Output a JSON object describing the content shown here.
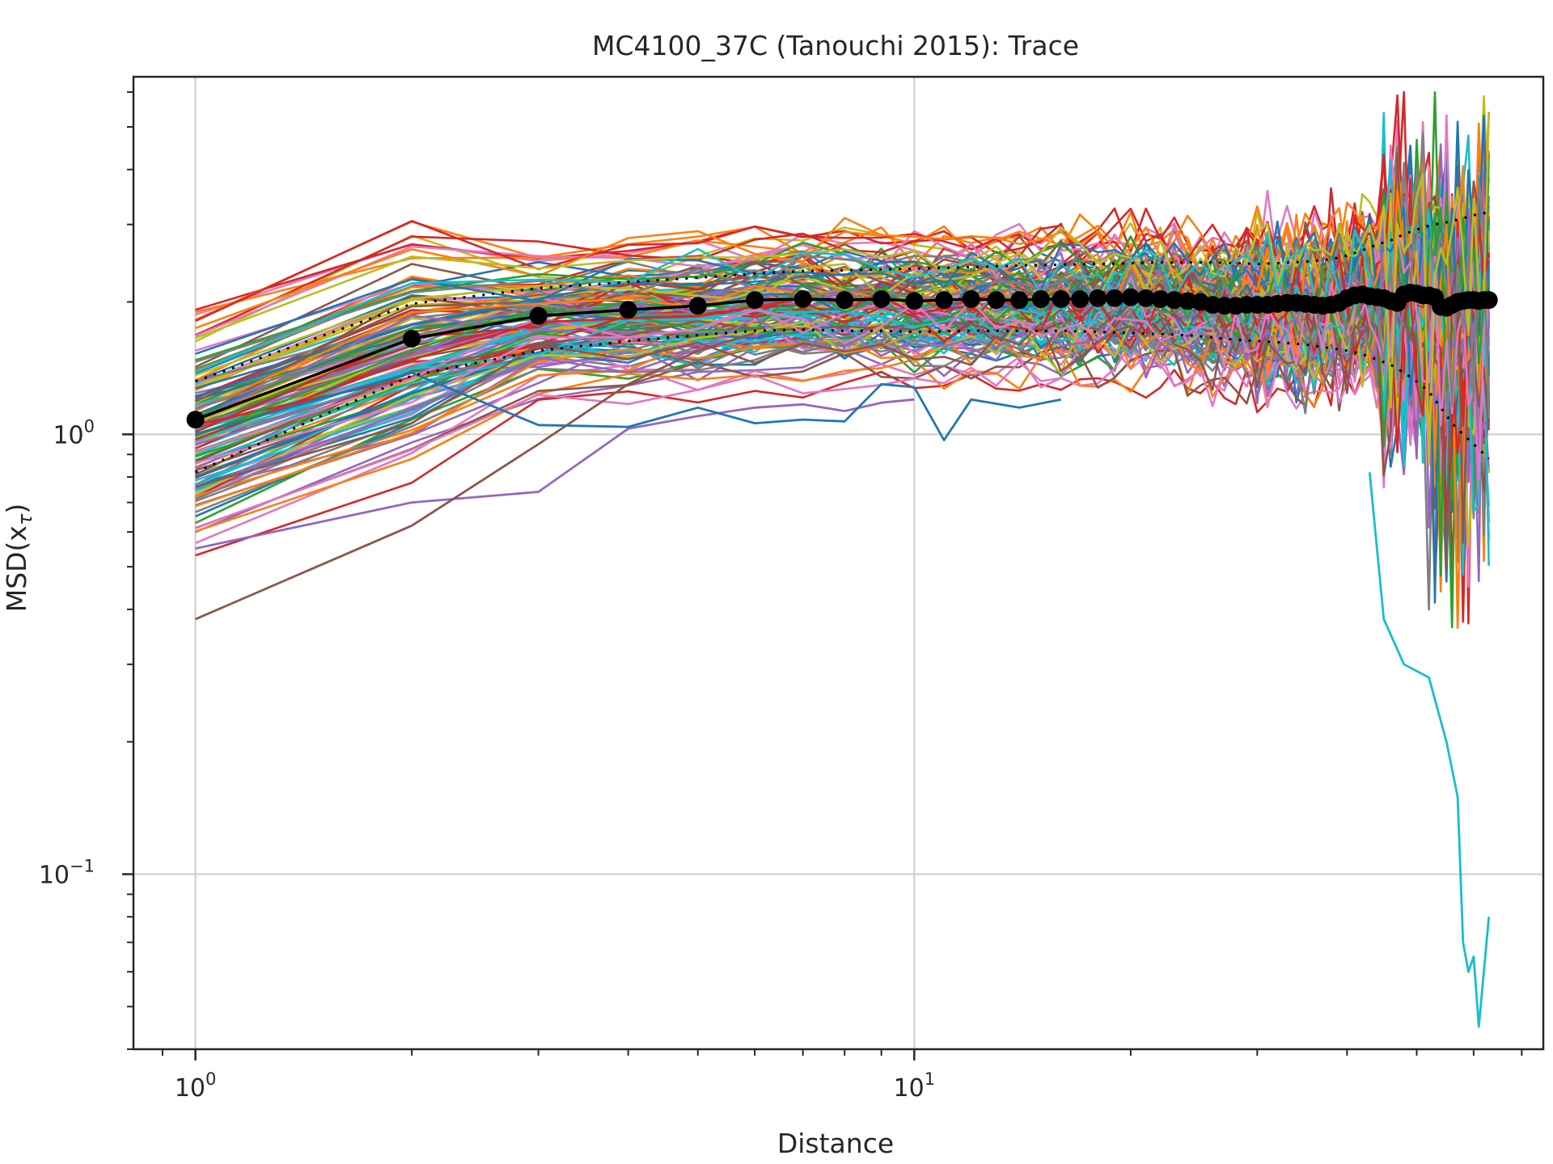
{
  "chart_data": {
    "type": "line",
    "title": "MC4100_37C (Tanouchi 2015): Trace",
    "xlabel": "Distance",
    "ylabel": "MSD(x_τ)",
    "ylabel_base": "MSD(x",
    "ylabel_sub": "τ",
    "ylabel_close": ")",
    "x_scale": "log",
    "y_scale": "log",
    "xlim": [
      0.82,
      75
    ],
    "ylim": [
      0.04,
      6.5
    ],
    "x_ticks": [
      {
        "value": 1,
        "base": "10",
        "exp": "0"
      },
      {
        "value": 10,
        "base": "10",
        "exp": "1"
      }
    ],
    "y_ticks": [
      {
        "value": 0.1,
        "base": "10",
        "exp": "−1"
      },
      {
        "value": 1,
        "base": "10",
        "exp": "0"
      }
    ],
    "grid": true,
    "legend": "none",
    "trace_count": 140,
    "palette": [
      "#1f77b4",
      "#ff7f0e",
      "#2ca02c",
      "#d62728",
      "#9467bd",
      "#8c564b",
      "#e377c2",
      "#7f7f7f",
      "#bcbd22",
      "#17becf"
    ],
    "mean_color": "#000000",
    "highlighted_traces": [
      {
        "name": "",
        "color": "#17becf",
        "x": [
          43,
          45,
          48,
          52,
          55,
          57,
          58,
          59,
          60,
          61,
          62,
          63
        ],
        "y": [
          0.82,
          0.38,
          0.3,
          0.28,
          0.2,
          0.15,
          0.07,
          0.06,
          0.065,
          0.045,
          0.06,
          0.08
        ]
      },
      {
        "name": "",
        "color": "#9467bd",
        "x": [
          1,
          2,
          3,
          4,
          5,
          6,
          7,
          8,
          9,
          10
        ],
        "y": [
          0.55,
          0.7,
          0.74,
          1.03,
          1.1,
          1.15,
          1.17,
          1.13,
          1.18,
          1.2
        ]
      },
      {
        "name": "",
        "color": "#1f77b4",
        "x": [
          1,
          2,
          3,
          4,
          5,
          6,
          7,
          8,
          9,
          10,
          11,
          12,
          14,
          16
        ],
        "y": [
          1.0,
          1.38,
          1.05,
          1.04,
          1.15,
          1.06,
          1.08,
          1.07,
          1.3,
          1.28,
          0.97,
          1.2,
          1.15,
          1.2
        ]
      },
      {
        "name": "",
        "color": "#8c564b",
        "x": [
          1,
          2,
          3,
          4,
          5,
          6
        ],
        "y": [
          0.38,
          0.62,
          0.95,
          1.3,
          1.55,
          1.7
        ]
      }
    ],
    "mean_series": {
      "x": [
        1,
        2,
        3,
        4,
        5,
        6,
        7,
        8,
        9,
        10,
        11,
        12,
        13,
        14,
        15,
        16,
        17,
        18,
        19,
        20,
        21,
        22,
        23,
        24,
        25,
        26,
        27,
        28,
        29,
        30,
        31,
        32,
        33,
        34,
        35,
        36,
        37,
        38,
        39,
        40,
        41,
        42,
        43,
        44,
        45,
        46,
        47,
        48,
        49,
        50,
        51,
        52,
        53,
        54,
        55,
        56,
        57,
        58,
        59,
        60,
        61,
        62,
        63
      ],
      "y": [
        1.08,
        1.65,
        1.86,
        1.92,
        1.96,
        2.02,
        2.03,
        2.02,
        2.03,
        2.01,
        2.02,
        2.03,
        2.02,
        2.02,
        2.03,
        2.03,
        2.03,
        2.04,
        2.04,
        2.05,
        2.04,
        2.03,
        2.02,
        2.01,
        2.0,
        1.97,
        1.96,
        1.96,
        1.97,
        1.97,
        1.97,
        1.98,
        1.99,
        1.99,
        1.98,
        1.97,
        1.96,
        1.97,
        1.99,
        2.04,
        2.07,
        2.08,
        2.06,
        2.05,
        2.04,
        2.01,
        1.99,
        2.08,
        2.1,
        2.09,
        2.07,
        2.07,
        2.05,
        1.95,
        1.94,
        1.97,
        2.0,
        2.01,
        2.02,
        2.02,
        2.01,
        2.02,
        2.02
      ]
    },
    "band_upper": {
      "x": [
        1,
        2,
        3,
        4,
        5,
        6,
        7,
        8,
        9,
        10,
        12,
        14,
        16,
        18,
        20,
        22,
        24,
        26,
        28,
        30,
        32,
        35,
        38,
        40,
        42,
        44,
        46,
        48,
        50,
        52,
        54,
        56,
        58,
        60,
        63
      ],
      "y": [
        1.32,
        1.98,
        2.15,
        2.22,
        2.27,
        2.32,
        2.35,
        2.36,
        2.37,
        2.38,
        2.4,
        2.42,
        2.43,
        2.44,
        2.45,
        2.46,
        2.46,
        2.46,
        2.45,
        2.44,
        2.45,
        2.47,
        2.5,
        2.55,
        2.62,
        2.7,
        2.76,
        2.85,
        2.92,
        2.98,
        3.02,
        3.05,
        3.1,
        3.15,
        3.2
      ]
    },
    "band_lower": {
      "x": [
        1,
        2,
        3,
        4,
        5,
        6,
        7,
        8,
        9,
        10,
        12,
        14,
        16,
        18,
        20,
        22,
        24,
        26,
        28,
        30,
        32,
        35,
        38,
        40,
        42,
        44,
        46,
        48,
        50,
        52,
        54,
        56,
        58,
        60,
        63
      ],
      "y": [
        0.82,
        1.36,
        1.55,
        1.63,
        1.68,
        1.72,
        1.73,
        1.72,
        1.72,
        1.71,
        1.72,
        1.72,
        1.72,
        1.71,
        1.7,
        1.69,
        1.68,
        1.66,
        1.64,
        1.63,
        1.62,
        1.6,
        1.57,
        1.55,
        1.52,
        1.48,
        1.44,
        1.38,
        1.32,
        1.25,
        1.15,
        1.06,
        1.0,
        0.95,
        0.88
      ]
    }
  }
}
